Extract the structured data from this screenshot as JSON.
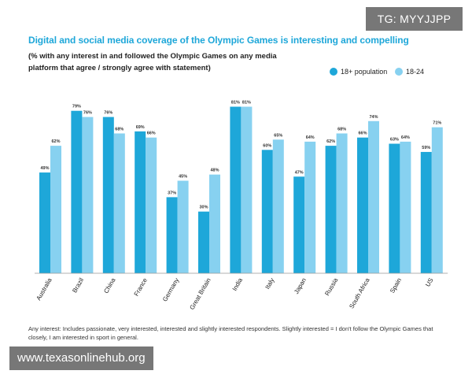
{
  "header": {
    "title": "Digital and social media coverage of the Olympic Games is interesting and compelling",
    "subtitle": "(% with any interest in and followed the Olympic Games on any media platform that agree / strongly agree with statement)"
  },
  "footnote": "Any interest: Includes passionate, very interested, interested and slightly interested respondents. Slightly interested = I don't follow the Olympic Games that closely, I am interested in sport in general.",
  "overlays": {
    "tg_label": "TG: MYYJJPP",
    "site_label": "www.texasonlinehub.org"
  },
  "colors": {
    "series1": "#1ea7d9",
    "series2": "#87d1f0",
    "title": "#1ea7d9"
  },
  "chart_data": {
    "type": "bar",
    "categories": [
      "Australia",
      "Brazil",
      "China",
      "France",
      "Germany",
      "Great Britain",
      "India",
      "Italy",
      "Japan",
      "Russia",
      "South Africa",
      "Spain",
      "US"
    ],
    "series": [
      {
        "name": "18+ population",
        "values": [
          49,
          79,
          76,
          69,
          37,
          30,
          81,
          60,
          47,
          62,
          66,
          63,
          59
        ]
      },
      {
        "name": "18-24",
        "values": [
          62,
          76,
          68,
          66,
          45,
          48,
          81,
          65,
          64,
          68,
          74,
          64,
          71
        ]
      }
    ],
    "value_suffix": "%",
    "legend_position": "top-right",
    "grid": false
  }
}
